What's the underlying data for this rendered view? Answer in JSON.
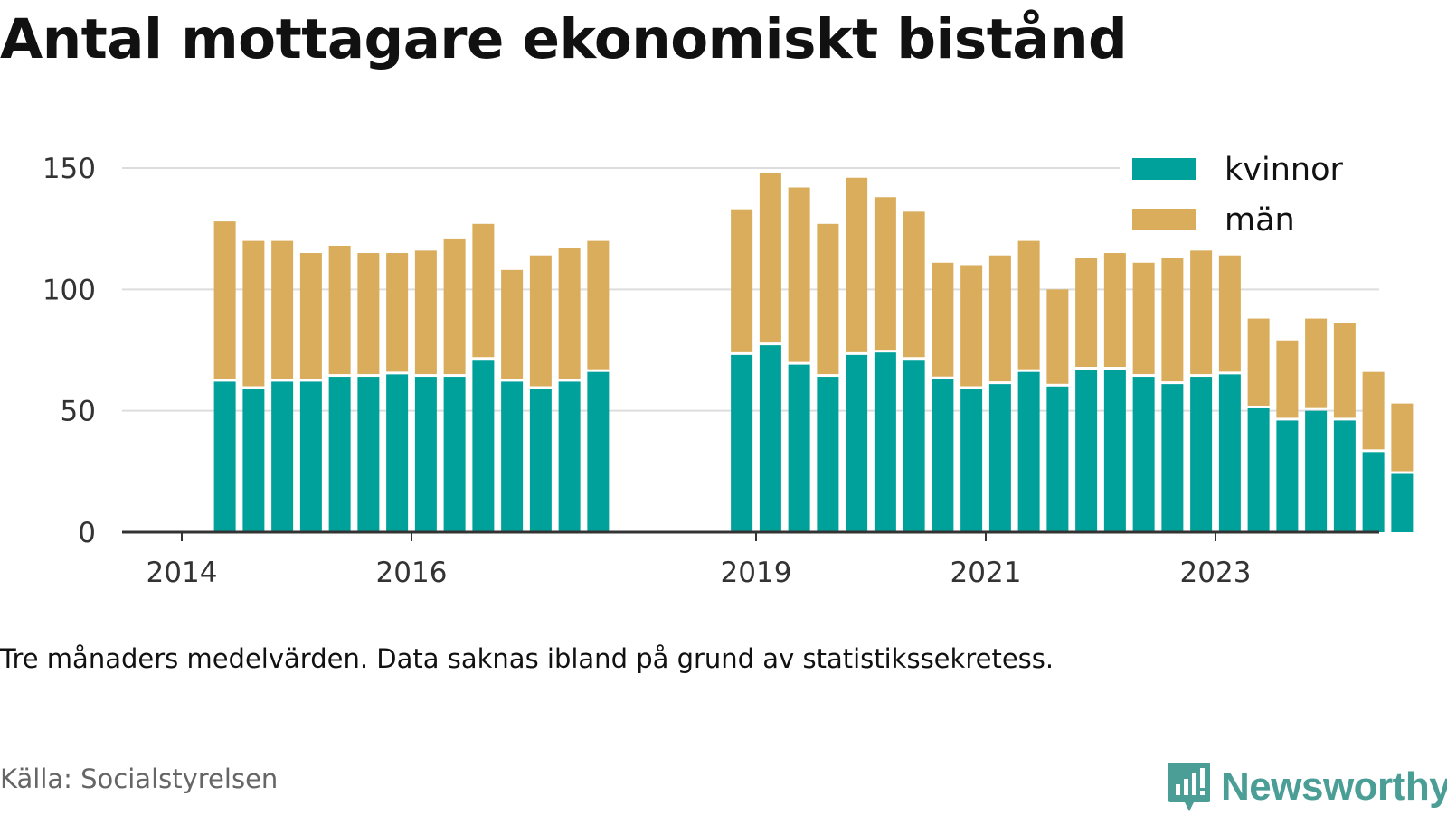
{
  "title": "Antal mottagare ekonomiskt bistånd",
  "subtitle": "Tre månaders medelvärden. Data saknas ibland på grund av statistikssekretess.",
  "source": "Källa: Socialstyrelsen",
  "brand": {
    "name": "Newsworthy",
    "color": "#4a9e96",
    "icon": "newsworthy-logo-icon"
  },
  "chart_data": {
    "type": "bar",
    "stacked": true,
    "x_unit": "quarter",
    "x": [
      "2014-Q2",
      "2014-Q3",
      "2014-Q4",
      "2015-Q1",
      "2015-Q2",
      "2015-Q3",
      "2015-Q4",
      "2016-Q1",
      "2016-Q2",
      "2016-Q3",
      "2016-Q4",
      "2017-Q1",
      "2017-Q2",
      "2017-Q3",
      "2018-Q4",
      "2019-Q1",
      "2019-Q2",
      "2019-Q3",
      "2019-Q4",
      "2020-Q1",
      "2020-Q2",
      "2020-Q3",
      "2020-Q4",
      "2021-Q1",
      "2021-Q2",
      "2021-Q3",
      "2021-Q4",
      "2022-Q1",
      "2022-Q2",
      "2022-Q3",
      "2022-Q4",
      "2023-Q1",
      "2023-Q2",
      "2023-Q3",
      "2023-Q4",
      "2024-Q1",
      "2024-Q2"
    ],
    "series": [
      {
        "name": "kvinnor",
        "color": "#00a19a",
        "values": [
          62,
          59,
          62,
          62,
          64,
          64,
          65,
          64,
          64,
          71,
          62,
          59,
          62,
          66,
          73,
          77,
          69,
          64,
          73,
          74,
          71,
          63,
          59,
          61,
          66,
          60,
          67,
          67,
          64,
          61,
          64,
          65,
          51,
          46,
          50,
          46,
          33
        ]
      },
      {
        "name": "män",
        "color": "#d9ad5b",
        "values": [
          66,
          61,
          58,
          53,
          54,
          51,
          50,
          52,
          57,
          56,
          46,
          55,
          55,
          54,
          60,
          71,
          73,
          63,
          73,
          64,
          61,
          48,
          51,
          53,
          54,
          40,
          46,
          48,
          47,
          52,
          52,
          49,
          37,
          33,
          38,
          40,
          33
        ]
      }
    ],
    "extra_bar": {
      "x": "2024-Q3",
      "kvinnor": 24,
      "män": 29
    },
    "x_ticks": [
      "2014",
      "2016",
      "2019",
      "2021",
      "2023"
    ],
    "y_ticks": [
      0,
      50,
      100,
      150
    ],
    "ylim": [
      0,
      160
    ],
    "grid": "horizontal",
    "legend_position": "top-right"
  }
}
